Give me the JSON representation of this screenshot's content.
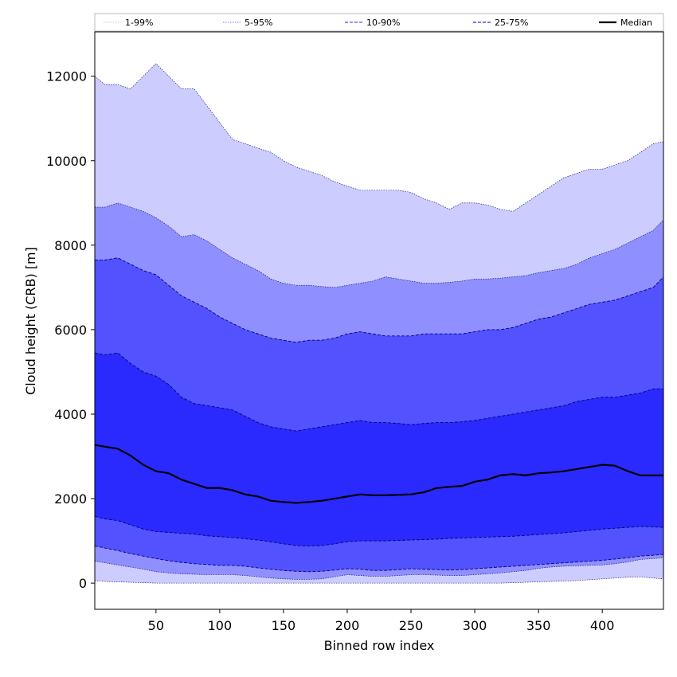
{
  "chart_data": {
    "type": "area",
    "xlabel": "Binned row index",
    "ylabel": "Cloud height (CRB) [m]",
    "xlim": [
      2,
      448
    ],
    "ylim": [
      -620,
      13050
    ],
    "x_ticks": [
      50,
      100,
      150,
      200,
      250,
      300,
      350,
      400
    ],
    "y_ticks": [
      0,
      2000,
      4000,
      6000,
      8000,
      10000,
      12000
    ],
    "grid": false,
    "legend_position": "top",
    "legend": [
      {
        "label": "1-99%",
        "color": "#ccccff",
        "line": "dotted"
      },
      {
        "label": "5-95%",
        "color": "#8f8fff",
        "line": "dotted"
      },
      {
        "label": "10-90%",
        "color": "#5252ff",
        "line": "dashed"
      },
      {
        "label": "25-75%",
        "color": "#2a2aff",
        "line": "dashed"
      },
      {
        "label": "Median",
        "color": "#000000",
        "line": "solid"
      }
    ],
    "x": [
      2,
      10,
      20,
      30,
      40,
      50,
      60,
      70,
      80,
      90,
      100,
      110,
      120,
      130,
      140,
      150,
      160,
      170,
      180,
      190,
      200,
      210,
      220,
      230,
      240,
      250,
      260,
      270,
      280,
      290,
      300,
      310,
      320,
      330,
      340,
      350,
      360,
      370,
      380,
      390,
      400,
      410,
      420,
      430,
      440,
      448
    ],
    "series": [
      {
        "name": "1-99%",
        "band": "outer",
        "color": "#ccccff",
        "lower": [
          60,
          40,
          30,
          20,
          10,
          0,
          0,
          0,
          0,
          0,
          0,
          0,
          0,
          0,
          0,
          0,
          0,
          0,
          0,
          0,
          0,
          0,
          0,
          0,
          0,
          0,
          0,
          0,
          0,
          0,
          0,
          0,
          0,
          10,
          20,
          30,
          40,
          50,
          60,
          80,
          100,
          120,
          140,
          150,
          120,
          100
        ],
        "upper": [
          12000,
          11800,
          11800,
          11700,
          12000,
          12300,
          12000,
          11700,
          11700,
          11300,
          10900,
          10500,
          10400,
          10300,
          10200,
          10000,
          9850,
          9750,
          9650,
          9500,
          9400,
          9300,
          9300,
          9300,
          9300,
          9250,
          9100,
          9000,
          8850,
          9000,
          9000,
          8950,
          8850,
          8800,
          9000,
          9200,
          9400,
          9600,
          9700,
          9800,
          9800,
          9900,
          10000,
          10200,
          10400,
          10450
        ]
      },
      {
        "name": "5-95%",
        "band": "outer",
        "color": "#8f8fff",
        "lower": [
          520,
          480,
          430,
          380,
          330,
          270,
          240,
          220,
          210,
          200,
          200,
          200,
          180,
          150,
          120,
          100,
          90,
          90,
          100,
          150,
          200,
          180,
          160,
          160,
          180,
          200,
          200,
          190,
          180,
          180,
          200,
          220,
          240,
          270,
          300,
          350,
          380,
          400,
          410,
          420,
          430,
          460,
          500,
          560,
          580,
          600
        ],
        "upper": [
          8900,
          8900,
          9000,
          8900,
          8800,
          8650,
          8450,
          8200,
          8250,
          8100,
          7900,
          7700,
          7550,
          7400,
          7200,
          7100,
          7050,
          7050,
          7020,
          7000,
          7050,
          7100,
          7150,
          7250,
          7200,
          7150,
          7100,
          7100,
          7120,
          7150,
          7200,
          7200,
          7220,
          7250,
          7280,
          7350,
          7400,
          7450,
          7550,
          7700,
          7800,
          7900,
          8050,
          8200,
          8350,
          8600
        ]
      },
      {
        "name": "10-90%",
        "band": "inner",
        "color": "#5252ff",
        "lower": [
          880,
          830,
          770,
          700,
          640,
          580,
          530,
          490,
          460,
          440,
          420,
          420,
          400,
          360,
          330,
          300,
          280,
          270,
          280,
          310,
          340,
          330,
          300,
          300,
          320,
          340,
          330,
          320,
          310,
          320,
          340,
          360,
          380,
          400,
          420,
          440,
          460,
          480,
          500,
          520,
          540,
          570,
          600,
          640,
          660,
          680
        ],
        "upper": [
          7650,
          7650,
          7700,
          7550,
          7400,
          7300,
          7050,
          6800,
          6650,
          6500,
          6300,
          6150,
          6000,
          5900,
          5800,
          5750,
          5700,
          5750,
          5750,
          5800,
          5900,
          5950,
          5900,
          5850,
          5850,
          5850,
          5900,
          5900,
          5900,
          5900,
          5950,
          6000,
          6000,
          6050,
          6150,
          6250,
          6300,
          6400,
          6500,
          6600,
          6650,
          6700,
          6800,
          6900,
          7000,
          7250
        ]
      },
      {
        "name": "25-75%",
        "band": "inner",
        "color": "#2a2aff",
        "lower": [
          1580,
          1520,
          1480,
          1380,
          1280,
          1220,
          1200,
          1180,
          1160,
          1120,
          1100,
          1080,
          1050,
          1020,
          980,
          930,
          890,
          880,
          890,
          930,
          980,
          1000,
          1000,
          1000,
          1010,
          1020,
          1030,
          1040,
          1060,
          1070,
          1080,
          1090,
          1100,
          1110,
          1130,
          1150,
          1170,
          1190,
          1220,
          1250,
          1280,
          1300,
          1320,
          1340,
          1330,
          1320
        ],
        "upper": [
          5450,
          5400,
          5450,
          5200,
          5000,
          4900,
          4700,
          4400,
          4250,
          4200,
          4150,
          4100,
          3950,
          3800,
          3700,
          3650,
          3600,
          3650,
          3700,
          3750,
          3800,
          3850,
          3800,
          3800,
          3780,
          3750,
          3780,
          3800,
          3800,
          3820,
          3850,
          3900,
          3950,
          4000,
          4050,
          4100,
          4150,
          4200,
          4300,
          4350,
          4400,
          4400,
          4450,
          4500,
          4600,
          4600
        ]
      },
      {
        "name": "Median",
        "band": "line",
        "color": "#000000",
        "values": [
          3270,
          3230,
          3180,
          3020,
          2800,
          2650,
          2600,
          2450,
          2350,
          2250,
          2250,
          2200,
          2100,
          2050,
          1950,
          1920,
          1900,
          1920,
          1950,
          2000,
          2050,
          2100,
          2080,
          2080,
          2090,
          2100,
          2150,
          2250,
          2280,
          2300,
          2400,
          2450,
          2550,
          2580,
          2550,
          2600,
          2620,
          2650,
          2700,
          2750,
          2800,
          2780,
          2650,
          2550,
          2550,
          2550
        ]
      }
    ]
  }
}
